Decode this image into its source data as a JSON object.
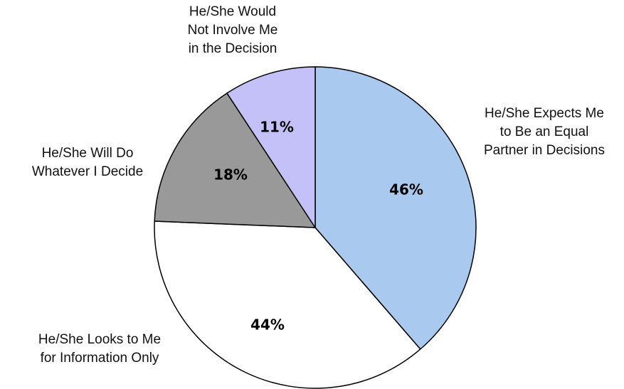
{
  "chart_data": {
    "type": "pie",
    "start": "12 o'clock",
    "direction": "clockwise",
    "slices": [
      {
        "label": [
          "He/She Expects Me",
          "to Be an Equal",
          "Partner in Decisions"
        ],
        "value": 46,
        "value_label": "46%",
        "color": "#a9caee"
      },
      {
        "label": [
          "He/She Looks to Me",
          "for Information Only"
        ],
        "value": 44,
        "value_label": "44%",
        "color": "#ffffff"
      },
      {
        "label": [
          "He/She Will Do",
          "Whatever I Decide"
        ],
        "value": 18,
        "value_label": "18%",
        "color": "#999999"
      },
      {
        "label": [
          "He/She Would",
          "Not Involve Me",
          "in the Decision"
        ],
        "value": 11,
        "value_label": "11%",
        "color": "#c4c0f8"
      }
    ],
    "edge_color": "#000000"
  }
}
